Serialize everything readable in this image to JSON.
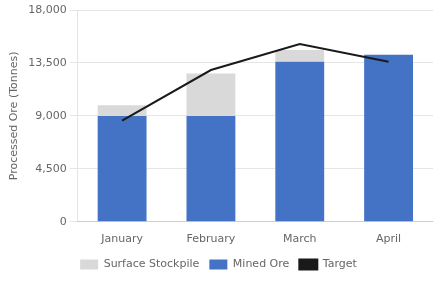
{
  "chart_data": {
    "type": "bar",
    "stacked": true,
    "ylabel": "Processed Ore (Tonnes)",
    "categories": [
      "January",
      "February",
      "March",
      "April"
    ],
    "series": [
      {
        "name": "Mined Ore",
        "color": "#4472C4",
        "values": [
          9000,
          9000,
          13600,
          14200
        ]
      },
      {
        "name": "Surface Stockpile",
        "color": "#D9D9D9",
        "values": [
          900,
          3600,
          1000,
          0
        ]
      },
      {
        "name": "Target",
        "type": "line",
        "color": "#1a1a1a",
        "values": [
          8600,
          12900,
          15100,
          13600
        ]
      }
    ],
    "ylim": [
      0,
      18000
    ],
    "yticks": [
      0,
      {
        "value": 4500,
        "label": "4,500"
      },
      {
        "value": 9000,
        "label": "9,000"
      },
      {
        "value": 13500,
        "label": "13,500"
      },
      {
        "value": 18000,
        "label": "18,000"
      }
    ],
    "grid": true,
    "legend": "bottom"
  }
}
